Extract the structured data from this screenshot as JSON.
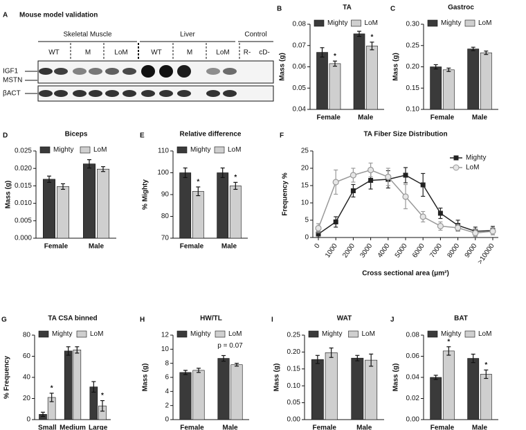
{
  "blot": {
    "panel": "A",
    "title": "Mouse model validation",
    "groups": [
      "Skeletal Muscle",
      "Liver",
      "Control"
    ],
    "lanes": [
      "WT",
      "M",
      "LoM",
      "WT",
      "M",
      "LoM",
      "R-",
      "cD-"
    ],
    "bands": [
      "IGF1",
      "MSTN",
      "βACT"
    ]
  },
  "chart_data": [
    {
      "type": "bar",
      "panel": "B",
      "title": "TA",
      "y_label": "Mass (g)",
      "categories": [
        "Female",
        "Male"
      ],
      "series": [
        {
          "name": "Mighty",
          "color": "#3a3a3a",
          "values": [
            0.0668,
            0.0755
          ],
          "errors": [
            0.0022,
            0.0012
          ]
        },
        {
          "name": "LoM",
          "color": "#cfcfcf",
          "values": [
            0.0615,
            0.0698
          ],
          "errors": [
            0.0012,
            0.0018
          ],
          "markers": [
            "*",
            "*"
          ]
        }
      ],
      "ylim": [
        0.04,
        0.08
      ],
      "yticks": [
        0.04,
        0.05,
        0.06,
        0.07,
        0.08
      ]
    },
    {
      "type": "bar",
      "panel": "C",
      "title": "Gastroc",
      "y_label": "Mass (g)",
      "categories": [
        "Female",
        "Male"
      ],
      "series": [
        {
          "name": "Mighty",
          "color": "#3a3a3a",
          "values": [
            0.2,
            0.242
          ],
          "errors": [
            0.005,
            0.004
          ]
        },
        {
          "name": "LoM",
          "color": "#cfcfcf",
          "values": [
            0.193,
            0.233
          ],
          "errors": [
            0.004,
            0.004
          ]
        }
      ],
      "ylim": [
        0.1,
        0.3
      ],
      "yticks": [
        {
          "value": 0.1,
          "label": "0.10"
        },
        0.15,
        {
          "value": 0.2,
          "label": "0.20"
        },
        0.25,
        {
          "value": 0.3,
          "label": "0.30"
        }
      ]
    },
    {
      "type": "bar",
      "panel": "D",
      "title": "Biceps",
      "y_label": "Mass (g)",
      "categories": [
        "Female",
        "Male"
      ],
      "series": [
        {
          "name": "Mighty",
          "color": "#3a3a3a",
          "values": [
            0.0169,
            0.0213
          ],
          "errors": [
            0.0009,
            0.0012
          ]
        },
        {
          "name": "LoM",
          "color": "#cfcfcf",
          "values": [
            0.0148,
            0.0198
          ],
          "errors": [
            0.0008,
            0.0007
          ]
        }
      ],
      "ylim": [
        0,
        0.025
      ],
      "yticks": [
        {
          "value": 0,
          "label": "0.000"
        },
        0.005,
        {
          "value": 0.01,
          "label": "0.010"
        },
        0.015,
        {
          "value": 0.02,
          "label": "0.020"
        },
        0.025
      ]
    },
    {
      "type": "bar",
      "panel": "E",
      "title": "Relative difference",
      "y_label": "% Mighty",
      "categories": [
        "Female",
        "Male"
      ],
      "series": [
        {
          "name": "Mighty",
          "color": "#3a3a3a",
          "values": [
            100,
            100
          ],
          "errors": [
            2.2,
            2.2
          ]
        },
        {
          "name": "LoM",
          "color": "#cfcfcf",
          "values": [
            91.5,
            94
          ],
          "errors": [
            2,
            1.6
          ],
          "markers": [
            "*",
            "*"
          ]
        }
      ],
      "ylim": [
        70,
        110
      ],
      "yticks": [
        70,
        80,
        90,
        100,
        110
      ]
    },
    {
      "type": "line",
      "panel": "F",
      "title": "TA Fiber Size Distribution",
      "y_label": "Frequency %",
      "x_label": "Cross sectional area (μm²)",
      "categories": [
        "0",
        "1000",
        "2000",
        "3000",
        "4000",
        "5000",
        "6000",
        "7000",
        "8000",
        "9000",
        ">10000"
      ],
      "series": [
        {
          "name": "Mighty",
          "color": "#222222",
          "marker": "square",
          "values": [
            1,
            4.5,
            13.5,
            16.5,
            16.8,
            18,
            15.2,
            7,
            3.5,
            1.8,
            2
          ],
          "errors": [
            1,
            1.5,
            1.8,
            2.5,
            2.5,
            2.2,
            3.3,
            1.5,
            1.5,
            1.2,
            1.2
          ]
        },
        {
          "name": "LoM",
          "color": "#999999",
          "marker": "circle",
          "values": [
            2.7,
            16,
            18,
            19.5,
            17.5,
            11.8,
            6,
            3.3,
            2.8,
            1.3,
            1.8
          ],
          "errors": [
            1.3,
            3.5,
            2,
            2,
            2.5,
            3.5,
            1.5,
            1.2,
            1,
            1,
            1
          ]
        }
      ],
      "ylim": [
        0,
        25
      ],
      "yticks": [
        0,
        5,
        10,
        15,
        20,
        25
      ],
      "legend": "upper right"
    },
    {
      "type": "bar",
      "panel": "G",
      "title": "TA CSA binned",
      "y_label": "% Frequency",
      "categories": [
        "Small",
        "Medium",
        "Large"
      ],
      "series": [
        {
          "name": "Mighty",
          "color": "#3a3a3a",
          "values": [
            5,
            65,
            31
          ],
          "errors": [
            2,
            4,
            5
          ]
        },
        {
          "name": "LoM",
          "color": "#cfcfcf",
          "values": [
            21,
            66,
            13
          ],
          "errors": [
            4,
            3,
            5
          ],
          "markers": [
            "*",
            null,
            "*"
          ]
        }
      ],
      "ylim": [
        0,
        80
      ],
      "yticks": [
        0,
        20,
        40,
        60,
        80
      ]
    },
    {
      "type": "bar",
      "panel": "H",
      "title": "HW/TL",
      "y_label": "Mass (g)",
      "categories": [
        "Female",
        "Male"
      ],
      "note": "p = 0.07",
      "series": [
        {
          "name": "Mighty",
          "color": "#3a3a3a",
          "values": [
            6.7,
            8.7
          ],
          "errors": [
            0.3,
            0.4
          ]
        },
        {
          "name": "LoM",
          "color": "#cfcfcf",
          "values": [
            7,
            7.8
          ],
          "errors": [
            0.3,
            0.2
          ]
        }
      ],
      "ylim": [
        0,
        12
      ],
      "yticks": [
        0,
        2,
        4,
        6,
        8,
        10,
        12
      ]
    },
    {
      "type": "bar",
      "panel": "I",
      "title": "WAT",
      "y_label": "Mass (g)",
      "categories": [
        "Female",
        "Male"
      ],
      "series": [
        {
          "name": "Mighty",
          "color": "#3a3a3a",
          "values": [
            0.178,
            0.182
          ],
          "errors": [
            0.012,
            0.008
          ]
        },
        {
          "name": "LoM",
          "color": "#cfcfcf",
          "values": [
            0.198,
            0.176
          ],
          "errors": [
            0.014,
            0.018
          ]
        }
      ],
      "ylim": [
        0,
        0.25
      ],
      "yticks": [
        {
          "value": 0,
          "label": "0.00"
        },
        0.05,
        {
          "value": 0.1,
          "label": "0.10"
        },
        0.15,
        {
          "value": 0.2,
          "label": "0.20"
        },
        0.25
      ]
    },
    {
      "type": "bar",
      "panel": "J",
      "title": "BAT",
      "y_label": "Mass (g)",
      "categories": [
        "Female",
        "Male"
      ],
      "series": [
        {
          "name": "Mighty",
          "color": "#3a3a3a",
          "values": [
            0.04,
            0.058
          ],
          "errors": [
            0.002,
            0.004
          ]
        },
        {
          "name": "LoM",
          "color": "#cfcfcf",
          "values": [
            0.065,
            0.043
          ],
          "errors": [
            0.004,
            0.004
          ],
          "markers": [
            "*",
            "*"
          ]
        }
      ],
      "ylim": [
        0,
        0.08
      ],
      "yticks": [
        {
          "value": 0,
          "label": "0.00"
        },
        0.02,
        0.04,
        0.06,
        0.08
      ]
    }
  ]
}
